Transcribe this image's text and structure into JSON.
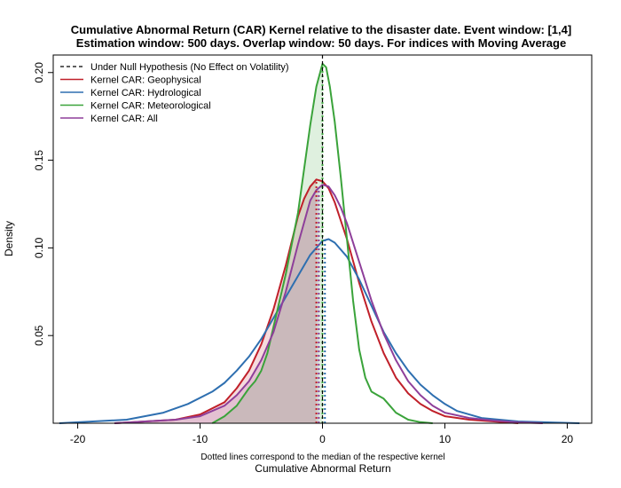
{
  "chart_data": {
    "type": "line",
    "title": "Cumulative Abnormal Return (CAR) Kernel relative to the disaster date. Event window: [1,4]",
    "subtitle": "Estimation window: 500 days. Overlap window: 50 days. For indices with Moving Average",
    "xlabel": "Cumulative Abnormal Return",
    "ylabel": "Density",
    "note": "Dotted lines correspond to the median of the respective kernel",
    "xlim": [
      -22,
      22
    ],
    "ylim": [
      0,
      0.21
    ],
    "xticks": [
      -20,
      -10,
      0,
      10,
      20
    ],
    "yticks": [
      0.05,
      0.1,
      0.15,
      0.2
    ],
    "xtick_labels": [
      "-20",
      "-10",
      "0",
      "10",
      "20"
    ],
    "ytick_labels": [
      "0.05",
      "0.10",
      "0.15",
      "0.20"
    ],
    "legend_position": "top-left",
    "legend": [
      {
        "label": "Under Null Hypothesis (No Effect on Volatility)",
        "color": "#000000",
        "dash": true
      },
      {
        "label": "Kernel CAR: Geophysical",
        "color": "#c0202a",
        "dash": false
      },
      {
        "label": "Kernel CAR: Hydrological",
        "color": "#2e6fb0",
        "dash": false
      },
      {
        "label": "Kernel CAR: Meteorological",
        "color": "#3aa33a",
        "dash": false
      },
      {
        "label": "Kernel CAR: All",
        "color": "#8e3f9a",
        "dash": false
      }
    ],
    "null_line_x": 0,
    "series": [
      {
        "name": "Kernel CAR: Geophysical",
        "color": "#c0202a",
        "fill": "#c0202a",
        "median": -0.5,
        "x": [
          -17,
          -12,
          -10,
          -8,
          -7,
          -6,
          -5,
          -4,
          -3,
          -2,
          -1.5,
          -1,
          -0.5,
          0,
          0.5,
          1,
          2,
          3,
          4,
          5,
          6,
          7,
          8,
          9,
          10,
          12,
          14,
          16
        ],
        "y": [
          0.0,
          0.002,
          0.005,
          0.012,
          0.02,
          0.03,
          0.045,
          0.065,
          0.09,
          0.118,
          0.128,
          0.135,
          0.139,
          0.138,
          0.134,
          0.126,
          0.105,
          0.08,
          0.058,
          0.04,
          0.026,
          0.017,
          0.011,
          0.007,
          0.004,
          0.002,
          0.001,
          0.0
        ]
      },
      {
        "name": "Kernel CAR: Hydrological",
        "color": "#2e6fb0",
        "fill": "none",
        "median": 0.2,
        "x": [
          -21.5,
          -16,
          -13,
          -11,
          -9,
          -8,
          -7,
          -6,
          -5,
          -4,
          -3,
          -2,
          -1,
          0,
          0.5,
          1,
          2,
          3,
          4,
          5,
          6,
          7,
          8,
          9,
          10,
          11,
          13,
          16,
          19,
          21
        ],
        "y": [
          0.0,
          0.002,
          0.006,
          0.011,
          0.018,
          0.023,
          0.03,
          0.038,
          0.048,
          0.06,
          0.072,
          0.084,
          0.096,
          0.104,
          0.105,
          0.103,
          0.095,
          0.082,
          0.067,
          0.052,
          0.04,
          0.03,
          0.022,
          0.016,
          0.011,
          0.007,
          0.003,
          0.001,
          0.0004,
          0.0
        ]
      },
      {
        "name": "Kernel CAR: Meteorological",
        "color": "#3aa33a",
        "fill": "#3aa33a",
        "median": 0.0,
        "x": [
          -9,
          -8,
          -7,
          -6,
          -5.5,
          -5,
          -4.5,
          -4,
          -3,
          -2,
          -1.5,
          -1,
          -0.5,
          0,
          0.3,
          0.6,
          1,
          1.5,
          2,
          2.5,
          3,
          3.5,
          4,
          4.5,
          5,
          5.5,
          6,
          7,
          8,
          9
        ],
        "y": [
          0.0,
          0.004,
          0.01,
          0.02,
          0.024,
          0.03,
          0.04,
          0.055,
          0.085,
          0.12,
          0.145,
          0.17,
          0.192,
          0.205,
          0.203,
          0.192,
          0.172,
          0.14,
          0.105,
          0.07,
          0.042,
          0.026,
          0.018,
          0.016,
          0.014,
          0.01,
          0.006,
          0.002,
          0.0006,
          0.0
        ]
      },
      {
        "name": "Kernel CAR: All",
        "color": "#8e3f9a",
        "fill": "#8e3f9a",
        "median": -0.3,
        "x": [
          -17,
          -12,
          -10,
          -8,
          -7,
          -6,
          -5,
          -4,
          -3,
          -2,
          -1,
          -0.5,
          0,
          0.5,
          1,
          1.5,
          2,
          3,
          4,
          5,
          6,
          7,
          8,
          9,
          10,
          12,
          14,
          16,
          18
        ],
        "y": [
          0.0,
          0.002,
          0.004,
          0.01,
          0.016,
          0.024,
          0.036,
          0.052,
          0.075,
          0.102,
          0.127,
          0.133,
          0.136,
          0.135,
          0.13,
          0.123,
          0.114,
          0.092,
          0.07,
          0.051,
          0.036,
          0.024,
          0.016,
          0.01,
          0.006,
          0.003,
          0.0015,
          0.0005,
          0.0
        ]
      }
    ]
  }
}
